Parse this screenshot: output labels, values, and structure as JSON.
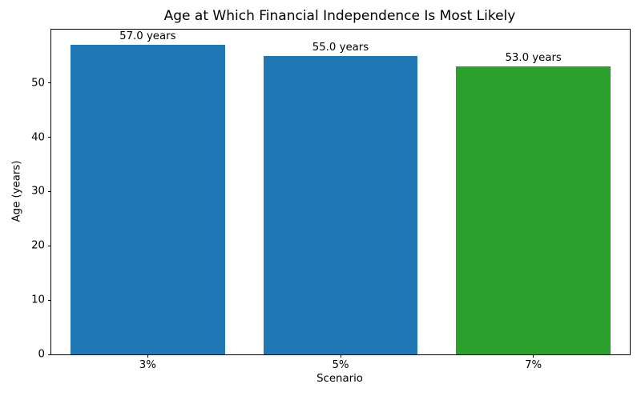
{
  "chart_data": {
    "type": "bar",
    "title": "Age at Which Financial Independence Is Most Likely",
    "xlabel": "Scenario",
    "ylabel": "Age (years)",
    "categories": [
      "3%",
      "5%",
      "7%"
    ],
    "values": [
      57.0,
      55.0,
      53.0
    ],
    "bar_labels": [
      "57.0 years",
      "55.0 years",
      "53.0 years"
    ],
    "bar_colors": [
      "#1f77b4",
      "#1f77b4",
      "#2ca02c"
    ],
    "ylim": [
      0,
      59.85
    ],
    "yticks": [
      0,
      10,
      20,
      30,
      40,
      50
    ],
    "bar_width_fraction": 0.8,
    "grid": false,
    "legend": "none",
    "axis_color": "#000000",
    "background_color": "#ffffff"
  }
}
